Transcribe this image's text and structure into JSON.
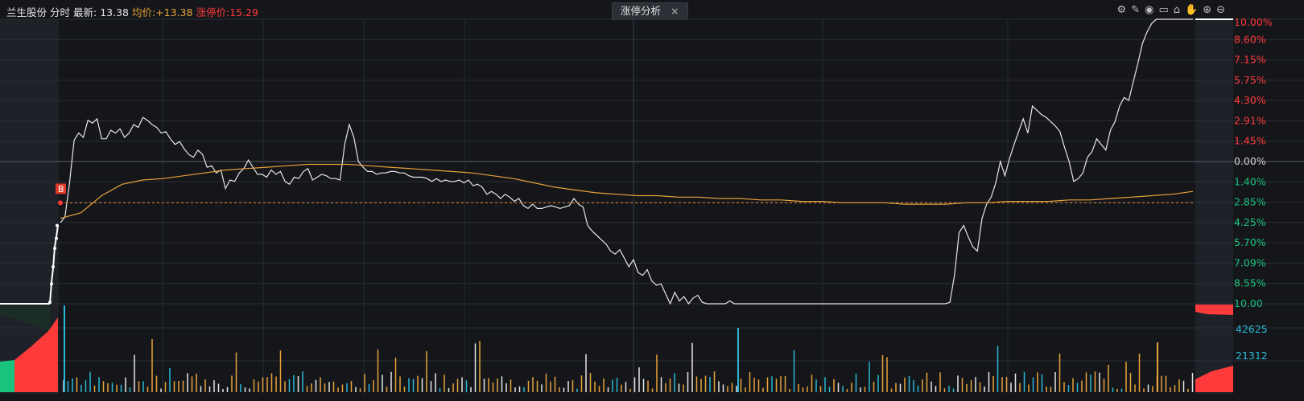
{
  "header": {
    "stock_name": "兰生股份",
    "mode": "分时",
    "latest_label": "最新:",
    "latest_value": "13.38",
    "avg_label": "均价:",
    "avg_value": "+13.38",
    "limit_label": "涨停价:",
    "limit_value": "15.29"
  },
  "tab": {
    "label": "涨停分析",
    "close": "×"
  },
  "toolbar": {
    "icons": [
      "gear-icon",
      "pen-icon",
      "eye-icon",
      "trash-icon",
      "lock-icon",
      "hand-icon",
      "zoom-in-icon",
      "zoom-out-icon"
    ]
  },
  "colors": {
    "up": "#ff3a3a",
    "down": "#19c37d",
    "price": "#e6e6e6",
    "avg": "#e8a23a",
    "volume_cyan": "#2ab8d6"
  },
  "chart_data": {
    "type": "line",
    "title": "",
    "xlabel": "",
    "ylabel": "",
    "y_axis_labels": [
      "10.00%",
      "8.60%",
      "7.15%",
      "5.75%",
      "4.30%",
      "2.91%",
      "1.45%",
      "0.00%",
      "1.40%",
      "2.85%",
      "4.25%",
      "5.70%",
      "7.09%",
      "8.55%",
      "10.00"
    ],
    "ylim": [
      -10,
      10
    ],
    "volume_axis_labels": [
      "42625",
      "21312"
    ],
    "grid": true,
    "marker": {
      "label": "B",
      "x": 1,
      "y": -2.9
    },
    "series": [
      {
        "name": "price_pct",
        "values": [
          -4.3,
          -3.9,
          -1.5,
          1.5,
          2.0,
          1.7,
          2.9,
          2.7,
          3.0,
          1.6,
          1.6,
          2.2,
          2.0,
          2.3,
          1.7,
          2.0,
          2.6,
          2.4,
          3.1,
          2.9,
          2.6,
          2.4,
          2.0,
          2.1,
          1.6,
          1.2,
          1.4,
          0.9,
          0.5,
          0.3,
          0.8,
          0.5,
          -0.4,
          -0.3,
          -0.8,
          -0.6,
          -1.9,
          -1.3,
          -1.4,
          -0.8,
          -0.5,
          0.1,
          -0.4,
          -0.9,
          -0.9,
          -1.1,
          -0.6,
          -0.9,
          -0.7,
          -1.4,
          -1.6,
          -1.1,
          -1.2,
          -0.7,
          -0.5,
          -1.3,
          -1.1,
          -0.9,
          -1.0,
          -1.2,
          -1.2,
          -1.3,
          1.2,
          2.6,
          1.7,
          0.0,
          -0.4,
          -0.7,
          -0.7,
          -0.9,
          -0.8,
          -0.8,
          -0.7,
          -0.7,
          -0.8,
          -0.8,
          -1.0,
          -1.1,
          -1.1,
          -1.1,
          -1.2,
          -1.4,
          -1.2,
          -1.4,
          -1.3,
          -1.4,
          -1.4,
          -1.3,
          -1.5,
          -1.3,
          -1.7,
          -1.6,
          -1.8,
          -2.3,
          -2.1,
          -2.3,
          -2.6,
          -2.3,
          -2.5,
          -2.8,
          -2.6,
          -3.1,
          -3.3,
          -3.0,
          -3.3,
          -3.3,
          -3.2,
          -3.1,
          -3.2,
          -3.3,
          -3.2,
          -3.1,
          -2.6,
          -3.0,
          -3.2,
          -4.5,
          -4.9,
          -5.2,
          -5.5,
          -5.8,
          -6.3,
          -6.5,
          -6.2,
          -6.8,
          -7.4,
          -6.9,
          -7.8,
          -8.0,
          -7.6,
          -8.4,
          -8.7,
          -8.6,
          -9.3,
          -10.0,
          -9.2,
          -9.8,
          -9.5,
          -10.0,
          -9.6,
          -9.4,
          -9.9,
          -10.0,
          -10.0,
          -10.0,
          -10.0,
          -10.0,
          -9.8,
          -10.0,
          -10.0,
          -10.0,
          -10.0,
          -10.0,
          -10.0,
          -10.0,
          -10.0,
          -10.0,
          -10.0,
          -10.0,
          -10.0,
          -10.0,
          -10.0,
          -10.0,
          -10.0,
          -10.0,
          -10.0,
          -10.0,
          -10.0,
          -10.0,
          -10.0,
          -10.0,
          -10.0,
          -10.0,
          -10.0,
          -10.0,
          -10.0,
          -10.0,
          -10.0,
          -10.0,
          -10.0,
          -10.0,
          -10.0,
          -10.0,
          -10.0,
          -10.0,
          -10.0,
          -10.0,
          -10.0,
          -10.0,
          -10.0,
          -10.0,
          -10.0,
          -10.0,
          -10.0,
          -10.0,
          -9.9,
          -8.0,
          -5.0,
          -4.5,
          -5.3,
          -6.0,
          -6.3,
          -4.0,
          -3.0,
          -2.5,
          -1.5,
          0.0,
          -1.0,
          0.2,
          1.2,
          2.1,
          3.0,
          2.0,
          3.9,
          3.6,
          3.3,
          3.1,
          2.8,
          2.5,
          2.1,
          1.0,
          0.0,
          -1.4,
          -1.2,
          -0.8,
          0.3,
          0.7,
          1.6,
          1.2,
          0.8,
          2.2,
          2.8,
          3.9,
          4.5,
          4.3,
          5.6,
          6.9,
          8.3,
          9.1,
          9.7,
          10.0,
          10.0,
          10.0,
          10.0,
          10.0,
          10.0,
          10.0,
          10.0,
          10.0
        ]
      },
      {
        "name": "avg_pct",
        "values": [
          -4.0,
          -3.6,
          -2.4,
          -1.6,
          -1.3,
          -1.2,
          -1.0,
          -0.8,
          -0.6,
          -0.5,
          -0.4,
          -0.3,
          -0.2,
          -0.2,
          -0.2,
          -0.3,
          -0.4,
          -0.5,
          -0.6,
          -0.7,
          -0.8,
          -1.0,
          -1.2,
          -1.5,
          -1.8,
          -2.0,
          -2.2,
          -2.3,
          -2.4,
          -2.4,
          -2.5,
          -2.5,
          -2.6,
          -2.6,
          -2.7,
          -2.7,
          -2.8,
          -2.8,
          -2.9,
          -2.9,
          -2.9,
          -3.0,
          -3.0,
          -3.0,
          -2.9,
          -2.9,
          -2.8,
          -2.8,
          -2.8,
          -2.7,
          -2.7,
          -2.6,
          -2.5,
          -2.4,
          -2.3,
          -2.1
        ]
      }
    ]
  }
}
